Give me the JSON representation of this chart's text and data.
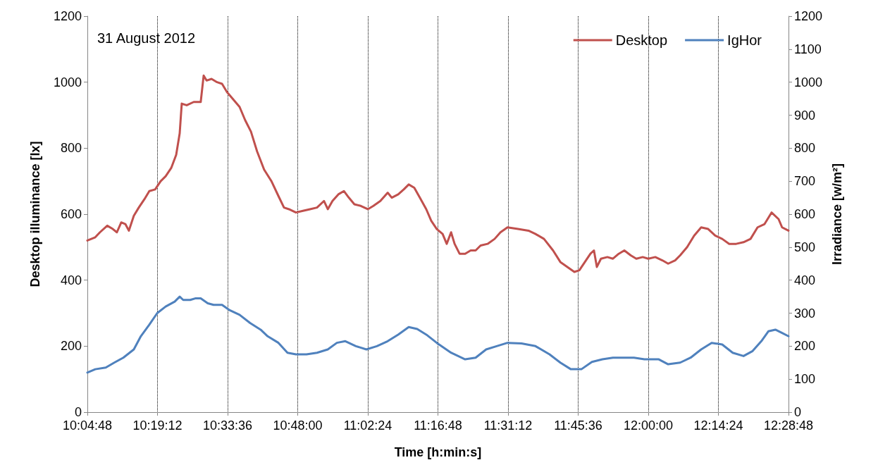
{
  "chart_data": {
    "type": "line",
    "xlabel": "Time [h:min:s]",
    "ylabel": "Desktop illuminance [lx]",
    "y2label": "Irradiance [w/m²]",
    "annotations": [
      "31 August 2012"
    ],
    "xlim": [
      10.08,
      12.48
    ],
    "xticks": [
      {
        "value": 10.08,
        "label": "10:04:48"
      },
      {
        "value": 10.32,
        "label": "10:19:12"
      },
      {
        "value": 10.56,
        "label": "10:33:36"
      },
      {
        "value": 10.8,
        "label": "10:48:00"
      },
      {
        "value": 11.04,
        "label": "11:02:24"
      },
      {
        "value": 11.28,
        "label": "11:16:48"
      },
      {
        "value": 11.52,
        "label": "11:31:12"
      },
      {
        "value": 11.76,
        "label": "11:45:36"
      },
      {
        "value": 12.0,
        "label": "12:00:00"
      },
      {
        "value": 12.24,
        "label": "12:14:24"
      },
      {
        "value": 12.48,
        "label": "12:28:48"
      }
    ],
    "ylim": [
      0,
      1200
    ],
    "yticks": [
      0,
      200,
      400,
      600,
      800,
      1000,
      1200
    ],
    "y2lim": [
      0,
      1200
    ],
    "y2ticks": [
      0,
      100,
      200,
      300,
      400,
      500,
      600,
      700,
      800,
      900,
      1000,
      1100,
      1200
    ],
    "grid": "x",
    "legend": "top right",
    "marker": "none",
    "line_style": "solid",
    "series": [
      {
        "name": "Desktop",
        "color": "#c0504d",
        "x": [
          10.08,
          10.107,
          10.123,
          10.148,
          10.167,
          10.181,
          10.196,
          10.21,
          10.222,
          10.239,
          10.256,
          10.275,
          10.292,
          10.312,
          10.331,
          10.348,
          10.367,
          10.384,
          10.396,
          10.403,
          10.42,
          10.444,
          10.468,
          10.478,
          10.488,
          10.505,
          10.524,
          10.541,
          10.558,
          10.577,
          10.601,
          10.62,
          10.64,
          10.661,
          10.685,
          10.71,
          10.734,
          10.753,
          10.77,
          10.794,
          10.818,
          10.842,
          10.866,
          10.89,
          10.903,
          10.919,
          10.939,
          10.958,
          10.975,
          10.994,
          11.016,
          11.04,
          11.059,
          11.083,
          11.108,
          11.122,
          11.144,
          11.163,
          11.18,
          11.199,
          11.218,
          11.24,
          11.257,
          11.276,
          11.296,
          11.31,
          11.325,
          11.337,
          11.354,
          11.373,
          11.392,
          11.409,
          11.426,
          11.45,
          11.474,
          11.494,
          11.518,
          11.554,
          11.59,
          11.614,
          11.643,
          11.674,
          11.699,
          11.723,
          11.747,
          11.764,
          11.783,
          11.802,
          11.814,
          11.824,
          11.838,
          11.86,
          11.879,
          11.899,
          11.918,
          11.94,
          11.959,
          11.981,
          12.0,
          12.024,
          12.048,
          12.068,
          12.092,
          12.109,
          12.133,
          12.157,
          12.181,
          12.205,
          12.229,
          12.253,
          12.277,
          12.301,
          12.326,
          12.35,
          12.374,
          12.398,
          12.422,
          12.446,
          12.458,
          12.48
        ],
        "values": [
          520,
          530,
          545,
          565,
          555,
          545,
          575,
          570,
          550,
          595,
          620,
          645,
          670,
          675,
          700,
          715,
          740,
          780,
          845,
          935,
          930,
          940,
          940,
          1020,
          1005,
          1010,
          1000,
          995,
          970,
          950,
          925,
          885,
          850,
          790,
          735,
          700,
          655,
          620,
          615,
          605,
          610,
          615,
          620,
          640,
          615,
          640,
          660,
          670,
          650,
          630,
          625,
          615,
          625,
          640,
          665,
          650,
          660,
          675,
          690,
          680,
          650,
          615,
          580,
          555,
          540,
          510,
          545,
          510,
          480,
          480,
          490,
          490,
          505,
          510,
          525,
          545,
          560,
          555,
          550,
          540,
          525,
          490,
          455,
          440,
          425,
          430,
          455,
          480,
          490,
          440,
          465,
          470,
          465,
          480,
          490,
          475,
          465,
          470,
          465,
          470,
          460,
          450,
          460,
          475,
          500,
          535,
          560,
          555,
          535,
          525,
          510,
          510,
          515,
          525,
          560,
          570,
          605,
          585,
          560,
          550
        ]
      },
      {
        "name": "IgHor",
        "color": "#4f81bd",
        "axis": "y2",
        "x": [
          10.08,
          10.107,
          10.143,
          10.172,
          10.203,
          10.239,
          10.263,
          10.292,
          10.319,
          10.348,
          10.379,
          10.396,
          10.408,
          10.432,
          10.451,
          10.468,
          10.492,
          10.512,
          10.541,
          10.565,
          10.601,
          10.637,
          10.673,
          10.697,
          10.734,
          10.765,
          10.794,
          10.83,
          10.866,
          10.903,
          10.934,
          10.963,
          10.999,
          11.035,
          11.071,
          11.108,
          11.144,
          11.18,
          11.209,
          11.24,
          11.276,
          11.325,
          11.373,
          11.409,
          11.445,
          11.481,
          11.518,
          11.566,
          11.614,
          11.662,
          11.699,
          11.735,
          11.771,
          11.807,
          11.843,
          11.879,
          11.915,
          11.951,
          11.987,
          12.036,
          12.068,
          12.109,
          12.145,
          12.181,
          12.217,
          12.253,
          12.289,
          12.326,
          12.357,
          12.387,
          12.411,
          12.435,
          12.458,
          12.48
        ],
        "values": [
          120,
          130,
          135,
          150,
          165,
          190,
          230,
          265,
          300,
          320,
          335,
          350,
          340,
          340,
          345,
          345,
          330,
          325,
          325,
          310,
          295,
          270,
          250,
          230,
          210,
          180,
          175,
          175,
          180,
          190,
          210,
          215,
          200,
          190,
          200,
          215,
          235,
          258,
          252,
          235,
          210,
          180,
          160,
          165,
          190,
          200,
          210,
          208,
          200,
          175,
          150,
          130,
          130,
          152,
          160,
          165,
          165,
          165,
          160,
          160,
          145,
          150,
          165,
          190,
          210,
          205,
          180,
          170,
          185,
          215,
          245,
          250,
          240,
          230
        ]
      }
    ]
  }
}
